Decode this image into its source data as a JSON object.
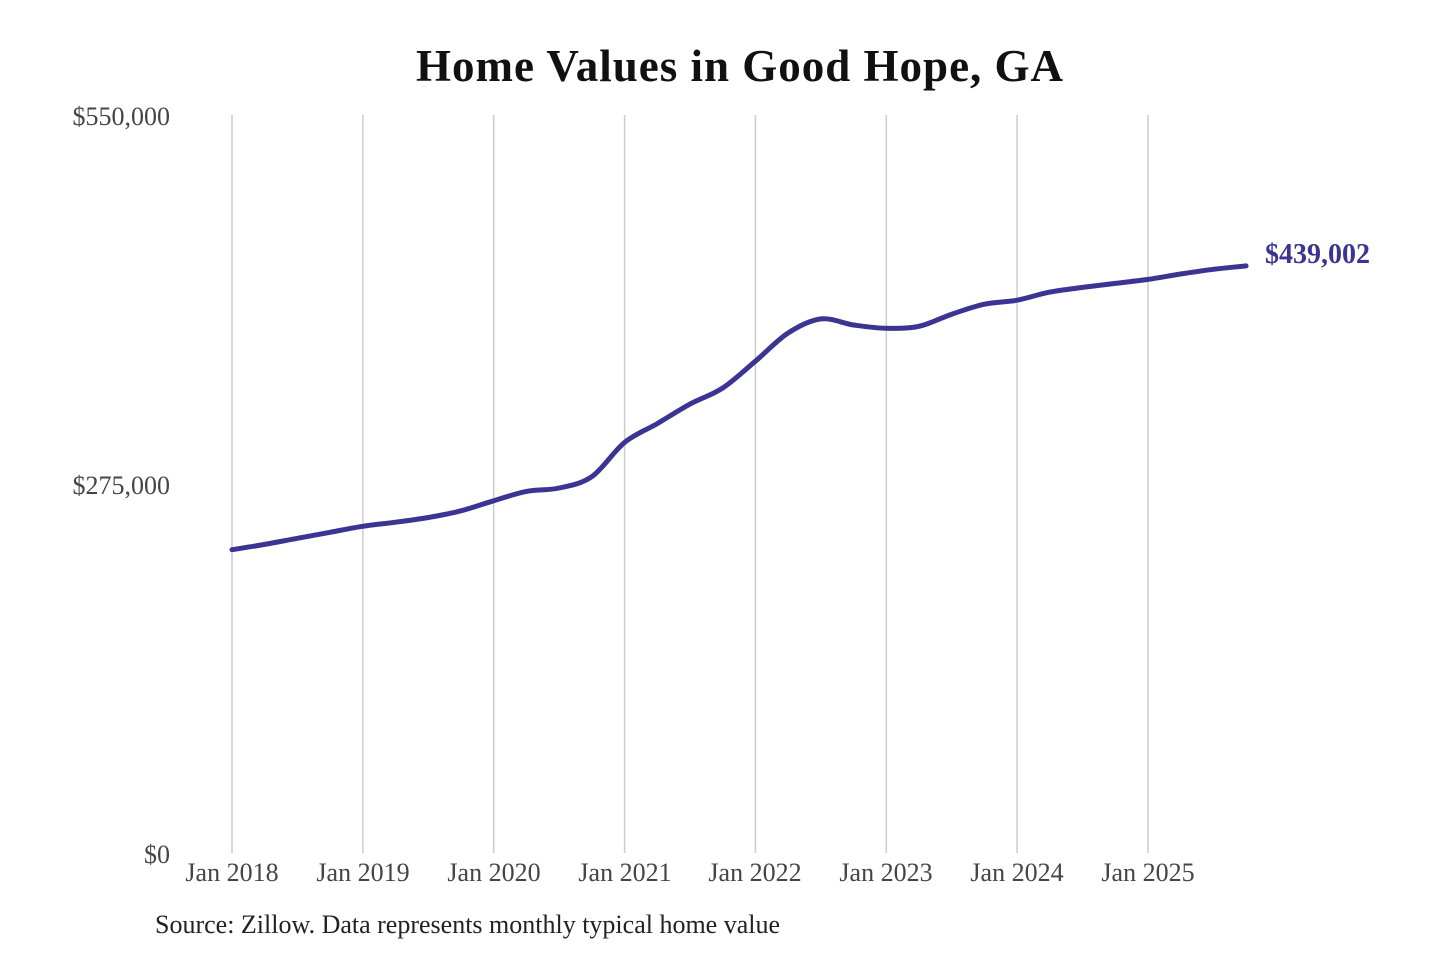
{
  "title": "Home Values in Good Hope, GA",
  "source_note": "Source: Zillow. Data represents monthly typical home value",
  "colors": {
    "line": "#3c3493",
    "grid": "#cccccc",
    "axis_text": "#454545",
    "title_text": "#111111",
    "source_text": "#222222"
  },
  "chart_data": {
    "type": "line",
    "title": "Home Values in Good Hope, GA",
    "series_name": "Monthly typical home value",
    "x_tick_labels": [
      "Jan 2018",
      "Jan 2019",
      "Jan 2020",
      "Jan 2021",
      "Jan 2022",
      "Jan 2023",
      "Jan 2024",
      "Jan 2025"
    ],
    "y_ticks": [
      {
        "label": "$0",
        "value": 0
      },
      {
        "label": "$275,000",
        "value": 275000
      },
      {
        "label": "$550,000",
        "value": 550000
      }
    ],
    "ylim": [
      0,
      550000
    ],
    "grid": "vertical-only",
    "legend": "none",
    "final_value": 439002,
    "final_value_label": "$439,002",
    "points": [
      [
        "2018-01",
        227500
      ],
      [
        "2018-04",
        231500
      ],
      [
        "2018-07",
        236000
      ],
      [
        "2018-10",
        240500
      ],
      [
        "2019-01",
        245000
      ],
      [
        "2019-04",
        248000
      ],
      [
        "2019-07",
        251500
      ],
      [
        "2019-10",
        256500
      ],
      [
        "2020-01",
        264000
      ],
      [
        "2020-04",
        271000
      ],
      [
        "2020-07",
        273500
      ],
      [
        "2020-10",
        282000
      ],
      [
        "2021-01",
        307500
      ],
      [
        "2021-04",
        321500
      ],
      [
        "2021-07",
        336000
      ],
      [
        "2021-10",
        348000
      ],
      [
        "2022-01",
        368000
      ],
      [
        "2022-04",
        389000
      ],
      [
        "2022-07",
        399500
      ],
      [
        "2022-10",
        395000
      ],
      [
        "2023-01",
        392500
      ],
      [
        "2023-04",
        394000
      ],
      [
        "2023-07",
        403000
      ],
      [
        "2023-10",
        410500
      ],
      [
        "2024-01",
        413500
      ],
      [
        "2024-04",
        419500
      ],
      [
        "2024-07",
        423000
      ],
      [
        "2024-10",
        426000
      ],
      [
        "2025-01",
        429000
      ],
      [
        "2025-04",
        433000
      ],
      [
        "2025-07",
        436500
      ],
      [
        "2025-10",
        439002
      ]
    ]
  }
}
